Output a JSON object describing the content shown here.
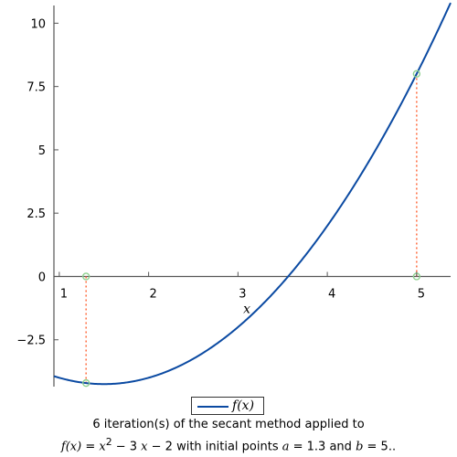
{
  "chart_data": {
    "type": "line",
    "series": [
      {
        "name": "f(x)",
        "function": "x^2 - 3x - 2",
        "color": "#0b4aa2"
      }
    ],
    "x_range": [
      0.94,
      5.38
    ],
    "y_range": [
      -4.35,
      10.7
    ],
    "xlabel": "x",
    "ylabel": "",
    "x_ticks": [
      {
        "value": 1,
        "label": "1"
      },
      {
        "value": 2,
        "label": "2"
      },
      {
        "value": 3,
        "label": "3"
      },
      {
        "value": 4,
        "label": "4"
      },
      {
        "value": 5,
        "label": "5"
      }
    ],
    "y_ticks": [
      {
        "value": -2.5,
        "label": "−2.5"
      },
      {
        "value": 0,
        "label": "0"
      },
      {
        "value": 2.5,
        "label": "2.5"
      },
      {
        "value": 5,
        "label": "5"
      },
      {
        "value": 7.5,
        "label": "7.5"
      },
      {
        "value": 10,
        "label": "10"
      }
    ],
    "initial_points": [
      {
        "x": 1.3,
        "y": -4.21
      },
      {
        "x": 5,
        "y": 8
      }
    ],
    "grid": false,
    "legend": {
      "position": "bottom-center",
      "label_func": "f",
      "label_var": "x"
    },
    "colors": {
      "curve": "#0b4aa2",
      "marker": "#8fd18f",
      "guide": "#ff6a3d",
      "axis": "#555555"
    }
  },
  "caption": {
    "line1": "6 iteration(s) of the secant method applied to",
    "func_lhs": "f(x)",
    "eq": " = ",
    "x_var": "x",
    "exp": "2",
    "mid": " − 3 ",
    "x_var2": "x",
    "tail": " − 2 with initial points ",
    "a_var": "a",
    "a_val": " = 1.3 and ",
    "b_var": "b",
    "b_val": " = 5.."
  }
}
